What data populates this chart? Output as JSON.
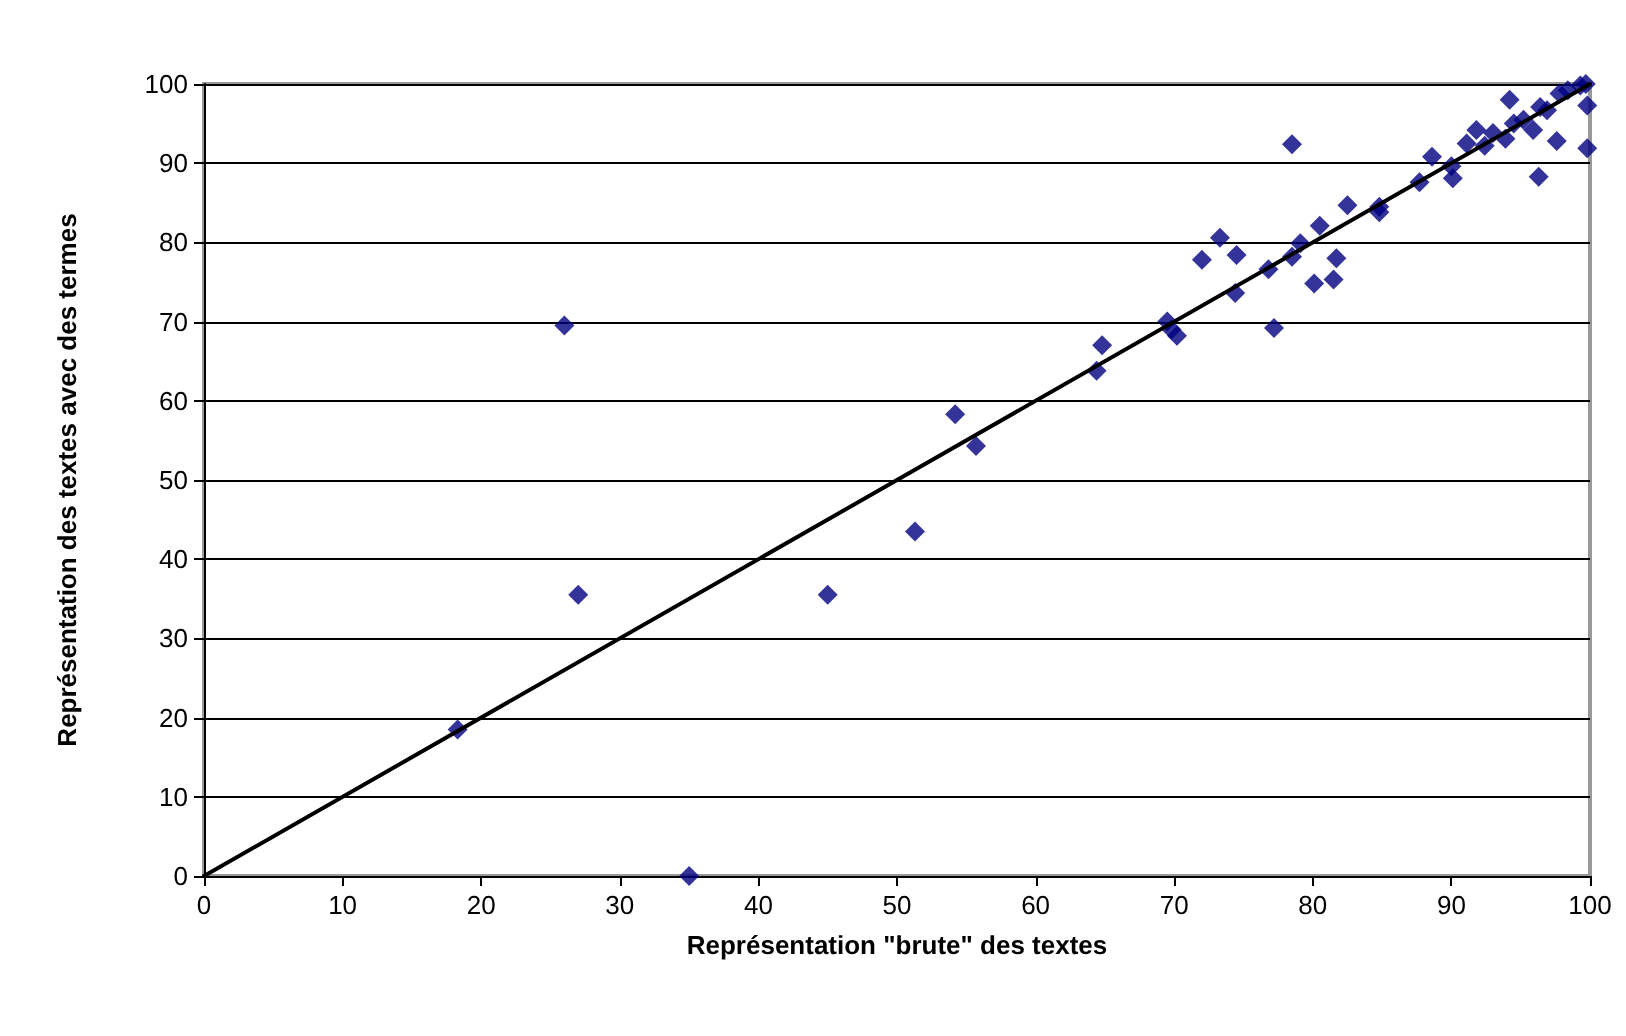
{
  "chart_data": {
    "type": "scatter",
    "xlabel": "Représentation \"brute\" des textes",
    "ylabel": "Représentation des textes avec des termes",
    "xlim": [
      0,
      100
    ],
    "ylim": [
      0,
      100
    ],
    "xticks": [
      0,
      10,
      20,
      30,
      40,
      50,
      60,
      70,
      80,
      90,
      100
    ],
    "yticks": [
      0,
      10,
      20,
      30,
      40,
      50,
      60,
      70,
      80,
      90,
      100
    ],
    "grid": "y",
    "marker": "diamond",
    "series": [
      {
        "color": "#000080",
        "x": [
          18.3,
          26,
          27,
          35,
          45,
          51.3,
          54.2,
          55.7,
          64.4,
          64.8,
          69.5,
          69.8,
          70.2,
          72,
          73.3,
          74.5,
          74.4,
          76.8,
          77.2,
          78.5,
          78.5,
          79.1,
          80.5,
          80.1,
          81.5,
          81.7,
          82.5,
          84.8,
          84.8,
          87.7,
          88.6,
          90,
          90.1,
          91.1,
          91.8,
          92.4,
          93,
          93.9,
          94.2,
          94.5,
          95.2,
          95.9,
          96.3,
          96.4,
          96.9,
          97.6,
          97.8,
          98.4,
          99.3,
          99.7,
          99.8,
          99.8
        ],
        "values": [
          18.5,
          69.5,
          35.5,
          0,
          35.5,
          43.5,
          58.3,
          54.3,
          63.8,
          67,
          70,
          69,
          68.2,
          77.8,
          80.6,
          78.4,
          73.6,
          76.6,
          69.2,
          92.4,
          78.2,
          79.9,
          82.1,
          74.8,
          75.3,
          78,
          84.7,
          83.8,
          84.5,
          87.6,
          90.8,
          89.6,
          88.1,
          92.5,
          94.2,
          92.2,
          93.8,
          93.1,
          98,
          95,
          95.5,
          94.2,
          88.3,
          97.1,
          96.7,
          92.8,
          98.8,
          99.2,
          99.8,
          100,
          97.3,
          91.9
        ]
      },
      {
        "type": "line",
        "color": "#000000",
        "marker": "none",
        "x": [
          0,
          100
        ],
        "values": [
          0,
          100
        ]
      }
    ]
  }
}
